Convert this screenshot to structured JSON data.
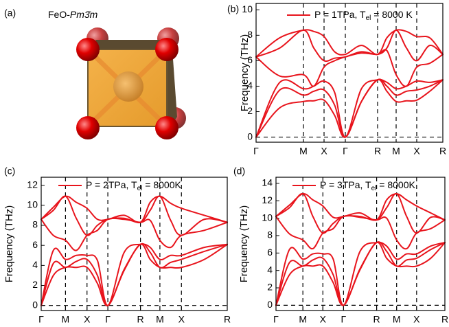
{
  "structure": {
    "label": "(a)",
    "title_prefix": "FeO-",
    "title_group": "Pm3̄m"
  },
  "chart_data": [
    {
      "type": "line",
      "panel_label": "(b)",
      "ylabel": "Frequency (THz)",
      "legend": {
        "text": "P = 1TPa, T",
        "sub": "el",
        "tail": " = 8000 K"
      },
      "x": [
        0,
        0.345,
        0.69,
        0.84,
        0.99,
        1.145,
        1.3,
        1.535,
        1.77,
        1.905,
        2.04,
        2.19,
        2.34,
        2.53,
        2.72
      ],
      "xlim": [
        0,
        2.72
      ],
      "xticks": [
        {
          "value": 0,
          "label": "Γ"
        },
        {
          "value": 0.69,
          "label": "M"
        },
        {
          "value": 0.99,
          "label": "X"
        },
        {
          "value": 1.3,
          "label": "Γ"
        },
        {
          "value": 1.77,
          "label": "R"
        },
        {
          "value": 2.04,
          "label": "M"
        },
        {
          "value": 2.34,
          "label": "X"
        },
        {
          "value": 2.72,
          "label": "R"
        }
      ],
      "ylim": [
        -0.4,
        10.5
      ],
      "yticks": [
        0,
        2,
        4,
        6,
        8,
        10
      ],
      "series": [
        {
          "color": "#e8141c",
          "values": [
            0,
            2.3,
            2.8,
            2.85,
            2.9,
            1.7,
            0,
            2.8,
            4.5,
            3.6,
            2.8,
            2.85,
            2.9,
            3.6,
            4.5
          ]
        },
        {
          "color": "#e8141c",
          "values": [
            0,
            3.7,
            3.3,
            3.6,
            3.7,
            2.5,
            0,
            2.8,
            4.5,
            4.0,
            3.3,
            3.6,
            3.7,
            4.0,
            4.5
          ]
        },
        {
          "color": "#e8141c",
          "values": [
            0,
            4.3,
            3.8,
            4.0,
            4.4,
            3.5,
            0,
            3.8,
            4.5,
            4.3,
            3.8,
            4.0,
            4.4,
            4.3,
            4.5
          ]
        },
        {
          "color": "#e8141c",
          "values": [
            6.3,
            4.8,
            4.9,
            4.0,
            5.5,
            6.0,
            6.3,
            6.6,
            6.5,
            6.8,
            4.9,
            4.0,
            5.5,
            5.8,
            6.5
          ]
        },
        {
          "color": "#e8141c",
          "values": [
            6.3,
            7.0,
            8.4,
            7.0,
            6.0,
            6.2,
            6.3,
            6.7,
            6.5,
            7.0,
            8.4,
            7.0,
            6.0,
            7.2,
            6.5
          ]
        },
        {
          "color": "#e8141c",
          "values": [
            6.3,
            7.8,
            8.4,
            8.3,
            7.9,
            6.7,
            6.5,
            7.2,
            6.5,
            7.8,
            8.4,
            8.3,
            7.9,
            7.8,
            6.5
          ]
        }
      ]
    },
    {
      "type": "line",
      "panel_label": "(c)",
      "ylabel": "Frequency (THz)",
      "legend": {
        "text": "P = 2TPa, T",
        "sub": "el",
        "tail": " = 8000K"
      },
      "x": [
        0,
        0.175,
        0.35,
        0.505,
        0.66,
        0.81,
        0.96,
        1.195,
        1.43,
        1.57,
        1.71,
        1.865,
        2.02,
        2.35,
        2.68
      ],
      "xlim": [
        0,
        2.68
      ],
      "xticks": [
        {
          "value": 0,
          "label": "Γ"
        },
        {
          "value": 0.35,
          "label": "M"
        },
        {
          "value": 0.66,
          "label": "X"
        },
        {
          "value": 0.96,
          "label": "Γ"
        },
        {
          "value": 1.43,
          "label": "R"
        },
        {
          "value": 1.71,
          "label": "M"
        },
        {
          "value": 2.02,
          "label": "X"
        },
        {
          "value": 2.68,
          "label": "R"
        }
      ],
      "ylim": [
        -0.5,
        12.8
      ],
      "yticks": [
        0,
        2,
        4,
        6,
        8,
        10,
        12
      ],
      "series": [
        {
          "color": "#e8141c",
          "values": [
            0,
            3.0,
            3.8,
            3.8,
            3.8,
            2.2,
            0,
            3.5,
            6.1,
            4.6,
            3.8,
            3.8,
            3.8,
            4.6,
            6.1
          ]
        },
        {
          "color": "#e8141c",
          "values": [
            0,
            4.2,
            3.8,
            4.4,
            4.6,
            3.0,
            0,
            3.6,
            6.1,
            5.3,
            3.8,
            4.3,
            4.6,
            5.4,
            6.1
          ]
        },
        {
          "color": "#e8141c",
          "values": [
            0,
            5.5,
            4.6,
            5.0,
            5.0,
            4.5,
            0,
            5.3,
            6.1,
            5.8,
            4.6,
            5.0,
            5.0,
            5.8,
            6.1
          ]
        },
        {
          "color": "#e8141c",
          "values": [
            8.6,
            7.0,
            6.5,
            5.5,
            7.0,
            7.5,
            8.6,
            8.6,
            8.3,
            8.5,
            6.5,
            5.8,
            7.0,
            7.5,
            8.3
          ]
        },
        {
          "color": "#e8141c",
          "values": [
            8.6,
            9.5,
            10.9,
            8.7,
            7.0,
            8.0,
            8.6,
            8.7,
            8.3,
            9.5,
            10.9,
            8.5,
            7.0,
            8.6,
            8.3
          ]
        },
        {
          "color": "#e8141c",
          "values": [
            8.6,
            9.8,
            10.9,
            10.3,
            9.7,
            8.6,
            8.6,
            9.0,
            8.3,
            10.3,
            10.9,
            10.2,
            9.7,
            9.0,
            8.3
          ]
        }
      ]
    },
    {
      "type": "line",
      "panel_label": "(d)",
      "ylabel": "Frequency (THz)",
      "legend": {
        "text": "P = 3TPa, T",
        "sub": "el",
        "tail": " = 8000K"
      },
      "x": [
        0,
        0.195,
        0.39,
        0.535,
        0.68,
        0.83,
        0.98,
        1.22,
        1.46,
        1.605,
        1.75,
        1.895,
        2.04,
        2.245,
        2.45
      ],
      "xlim": [
        0,
        2.45
      ],
      "xticks": [
        {
          "value": 0,
          "label": "Γ"
        },
        {
          "value": 0.39,
          "label": "M"
        },
        {
          "value": 0.68,
          "label": "X"
        },
        {
          "value": 0.98,
          "label": "Γ"
        },
        {
          "value": 1.46,
          "label": "R"
        },
        {
          "value": 1.75,
          "label": "M"
        },
        {
          "value": 2.04,
          "label": "X"
        },
        {
          "value": 2.45,
          "label": "R"
        }
      ],
      "ylim": [
        -0.6,
        14.7
      ],
      "yticks": [
        0,
        2,
        4,
        6,
        8,
        10,
        12,
        14
      ],
      "series": [
        {
          "color": "#e8141c",
          "values": [
            0,
            3.5,
            4.5,
            4.5,
            4.5,
            2.6,
            0,
            4.1,
            7.2,
            5.4,
            4.5,
            4.5,
            4.5,
            5.4,
            7.2
          ]
        },
        {
          "color": "#e8141c",
          "values": [
            0,
            4.9,
            4.5,
            5.2,
            5.4,
            3.5,
            0,
            4.2,
            7.2,
            6.2,
            4.5,
            5.2,
            5.4,
            6.4,
            7.2
          ]
        },
        {
          "color": "#e8141c",
          "values": [
            0,
            6.4,
            5.3,
            5.9,
            5.9,
            5.3,
            0,
            6.2,
            7.2,
            6.8,
            5.3,
            5.9,
            5.9,
            6.8,
            7.2
          ]
        },
        {
          "color": "#e8141c",
          "values": [
            10.2,
            8.2,
            7.5,
            6.5,
            8.3,
            8.8,
            10.2,
            10.1,
            9.8,
            10.0,
            7.5,
            6.5,
            8.3,
            8.8,
            9.8
          ]
        },
        {
          "color": "#e8141c",
          "values": [
            10.2,
            11.2,
            12.8,
            10.2,
            8.3,
            9.4,
            10.2,
            10.2,
            9.8,
            11.2,
            12.8,
            10.2,
            8.3,
            10.1,
            9.8
          ]
        },
        {
          "color": "#e8141c",
          "values": [
            10.2,
            11.5,
            12.8,
            12.1,
            11.4,
            10.1,
            10.2,
            10.6,
            9.8,
            12.1,
            12.8,
            12.1,
            11.4,
            10.6,
            9.8
          ]
        }
      ]
    }
  ]
}
